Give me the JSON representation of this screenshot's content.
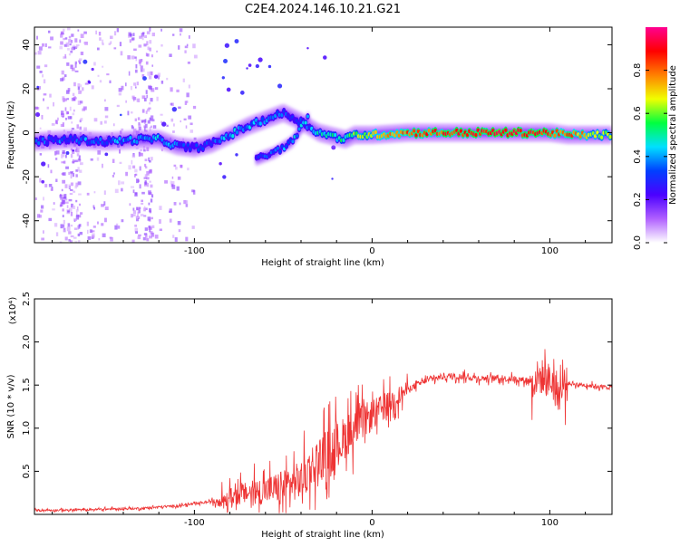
{
  "title": "C2E4.2024.146.10.21.G21",
  "chart_data": [
    {
      "type": "heatmap",
      "xlabel": "Height of straight line (km)",
      "ylabel": "Frequency (Hz)",
      "xlim": [
        -190,
        135
      ],
      "ylim": [
        -50,
        48
      ],
      "x_ticks": [
        -100,
        0,
        100
      ],
      "y_ticks": [
        -40,
        -20,
        0,
        20,
        40
      ],
      "colorbar": {
        "label": "Normalized spectral amplitude",
        "range": [
          0,
          1
        ],
        "ticks": [
          "0.0",
          "0.2",
          "0.4",
          "0.6",
          "0.8"
        ],
        "tick_values": [
          0,
          0.2,
          0.4,
          0.6,
          0.8
        ],
        "colors": [
          "#ffffff",
          "#b060ff",
          "#4b00ff",
          "#0040ff",
          "#00e0ff",
          "#00ff40",
          "#f0ff00",
          "#ff8000",
          "#ff0000",
          "#ff0090"
        ]
      },
      "ridge": {
        "x": [
          -190,
          -170,
          -150,
          -130,
          -120,
          -110,
          -100,
          -90,
          -80,
          -70,
          -60,
          -50,
          -40,
          -30,
          -20,
          -15,
          -10,
          0,
          20,
          40,
          60,
          80,
          100,
          110,
          135
        ],
        "y": [
          -4,
          -3,
          -4,
          -3,
          -3,
          -6,
          -7,
          -5,
          -1,
          3,
          6,
          9,
          5,
          0,
          -2,
          -3,
          -1,
          -1,
          0,
          0,
          0,
          0,
          0,
          -1,
          -1
        ],
        "amplitude": [
          0.3,
          0.35,
          0.35,
          0.4,
          0.4,
          0.35,
          0.3,
          0.35,
          0.4,
          0.4,
          0.4,
          0.35,
          0.3,
          0.45,
          0.5,
          0.5,
          0.6,
          0.7,
          0.8,
          0.85,
          0.9,
          0.9,
          0.85,
          0.8,
          0.6
        ]
      },
      "secondary_ridge": {
        "x": [
          -65,
          -55,
          -45,
          -40,
          -35
        ],
        "y": [
          -12,
          -9,
          -4,
          2,
          8
        ],
        "amplitude": [
          0.3,
          0.35,
          0.4,
          0.45,
          0.4
        ]
      }
    },
    {
      "type": "line",
      "color": "#ee3333",
      "xlabel": "Height of straight line (km)",
      "ylabel": "SNR (10 * v/v)",
      "y_multiplier": "(x10⁴)",
      "xlim": [
        -190,
        135
      ],
      "ylim": [
        0,
        2.5
      ],
      "x_ticks": [
        -100,
        0,
        100
      ],
      "y_ticks": [
        0.5,
        1.0,
        1.5,
        2.0,
        2.5
      ],
      "y_tick_labels": [
        "0.5",
        "1.0",
        "1.5",
        "2.0",
        "2.5"
      ],
      "series": [
        {
          "x": [
            -190,
            -170,
            -150,
            -130,
            -110,
            -100,
            -90,
            -80,
            -70,
            -60,
            -50,
            -40,
            -35,
            -30,
            -20,
            -10,
            0,
            10,
            20,
            30,
            40,
            50,
            60,
            70,
            80,
            90,
            95,
            100,
            103,
            105,
            110,
            120,
            135
          ],
          "y": [
            0.05,
            0.05,
            0.06,
            0.07,
            0.1,
            0.12,
            0.15,
            0.2,
            0.25,
            0.28,
            0.32,
            0.4,
            0.55,
            0.65,
            0.8,
            1.0,
            1.15,
            1.3,
            1.45,
            1.55,
            1.6,
            1.6,
            1.58,
            1.58,
            1.57,
            1.55,
            1.6,
            1.55,
            1.5,
            1.4,
            1.52,
            1.5,
            1.47
          ]
        }
      ]
    }
  ]
}
